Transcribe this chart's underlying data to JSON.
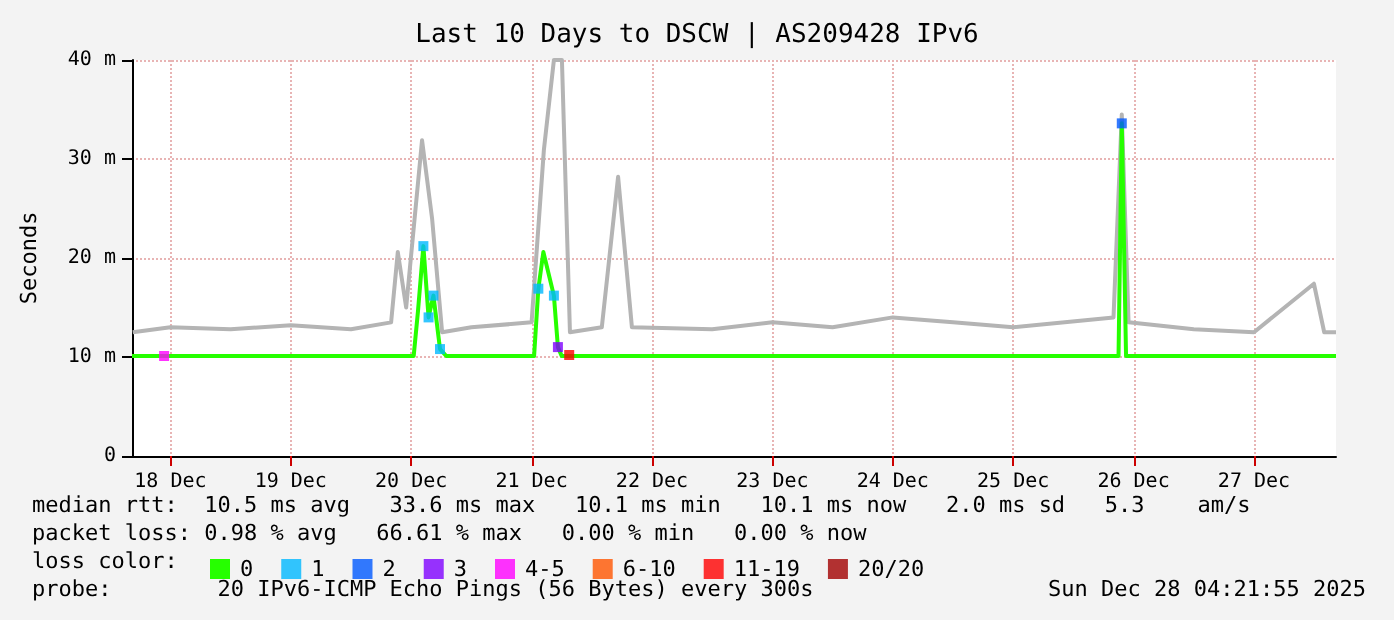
{
  "chart_data": {
    "type": "line",
    "title": "Last 10 Days to DSCW | AS209428 IPv6",
    "ylabel": "Seconds",
    "xlim": [
      "2025-12-18T04:21",
      "2025-12-28T04:21"
    ],
    "xticks": [
      {
        "value": "2025-12-18T12:00",
        "label": "18 Dec"
      },
      {
        "value": "2025-12-19T12:00",
        "label": "19 Dec"
      },
      {
        "value": "2025-12-20T12:00",
        "label": "20 Dec"
      },
      {
        "value": "2025-12-21T12:00",
        "label": "21 Dec"
      },
      {
        "value": "2025-12-22T12:00",
        "label": "22 Dec"
      },
      {
        "value": "2025-12-23T12:00",
        "label": "23 Dec"
      },
      {
        "value": "2025-12-24T12:00",
        "label": "24 Dec"
      },
      {
        "value": "2025-12-25T12:00",
        "label": "25 Dec"
      },
      {
        "value": "2025-12-26T12:00",
        "label": "26 Dec"
      },
      {
        "value": "2025-12-27T12:00",
        "label": "27 Dec"
      }
    ],
    "ylim": [
      0,
      40
    ],
    "yticks": [
      0,
      {
        "value": 10,
        "label": "10 m"
      },
      {
        "value": 20,
        "label": "20 m"
      },
      {
        "value": 30,
        "label": "30 m"
      },
      {
        "value": 40,
        "label": "40 m"
      }
    ],
    "grid": true,
    "legend": "bottom",
    "legend_title": "loss color:",
    "series": [
      {
        "color": "#b4b4b4",
        "marker": "none",
        "x": [
          "2025-12-18T04:30",
          "2025-12-18T12:00",
          "2025-12-19T00:00",
          "2025-12-19T12:00",
          "2025-12-20T00:00",
          "2025-12-20T08:00",
          "2025-12-20T09:20",
          "2025-12-20T11:00",
          "2025-12-20T14:10",
          "2025-12-20T16:10",
          "2025-12-20T18:10",
          "2025-12-21T00:00",
          "2025-12-21T12:00",
          "2025-12-21T14:27",
          "2025-12-21T16:27",
          "2025-12-21T18:03",
          "2025-12-21T19:39",
          "2025-12-22T02:00",
          "2025-12-22T05:15",
          "2025-12-22T08:00",
          "2025-12-23T00:00",
          "2025-12-23T12:00",
          "2025-12-24T00:00",
          "2025-12-24T12:00",
          "2025-12-25T00:00",
          "2025-12-25T12:00",
          "2025-12-26T08:00",
          "2025-12-26T09:39",
          "2025-12-26T11:00",
          "2025-12-27T00:00",
          "2025-12-27T12:00",
          "2025-12-27T23:57",
          "2025-12-28T02:00",
          "2025-12-28T04:21"
        ],
        "values": [
          12.5,
          13,
          12.8,
          13.2,
          12.8,
          13.5,
          20.6,
          15,
          31.9,
          24,
          12.5,
          13,
          13.5,
          30.9,
          40,
          40,
          12.5,
          13,
          28.2,
          13,
          12.8,
          13.5,
          13,
          14,
          13.5,
          13,
          14,
          34.5,
          13.5,
          12.8,
          12.5,
          17.4,
          12.5,
          12.5
        ]
      },
      {
        "name": "0",
        "color": "#26ff00",
        "marker": "none",
        "x": [
          "2025-12-18T04:21",
          "2025-12-20T12:30",
          "2025-12-20T13:21",
          "2025-12-20T14:26",
          "2025-12-20T15:28",
          "2025-12-20T16:26",
          "2025-12-20T17:45",
          "2025-12-20T19:00",
          "2025-12-21T12:30",
          "2025-12-21T13:21",
          "2025-12-21T14:21",
          "2025-12-21T16:27",
          "2025-12-21T17:15",
          "2025-12-21T18:00",
          "2025-12-26T09:00",
          "2025-12-26T09:39",
          "2025-12-26T10:30",
          "2025-12-28T04:21"
        ],
        "values": [
          10.1,
          10.1,
          14.6,
          21.2,
          14,
          16.2,
          10.8,
          10.1,
          10.1,
          16.9,
          20.6,
          16.2,
          11,
          10.1,
          10.1,
          33.6,
          10.1,
          10.1
        ]
      },
      {
        "name": "1",
        "type": "scatter",
        "color": "#00b8ff",
        "marker": "square",
        "x": [
          "2025-12-20T14:26",
          "2025-12-20T15:28",
          "2025-12-20T16:26",
          "2025-12-20T17:45",
          "2025-12-21T13:21",
          "2025-12-21T16:27"
        ],
        "values": [
          21.2,
          14,
          16.2,
          10.8,
          16.9,
          16.2
        ]
      },
      {
        "name": "2",
        "type": "scatter",
        "color": "#0059ff",
        "marker": "square",
        "x": [
          "2025-12-26T09:39"
        ],
        "values": [
          33.6
        ]
      },
      {
        "name": "3",
        "type": "scatter",
        "color": "#7e00ff",
        "marker": "square",
        "x": [
          "2025-12-21T17:15"
        ],
        "values": [
          11
        ]
      },
      {
        "name": "4-5",
        "type": "scatter",
        "color": "#ff00ff",
        "marker": "square",
        "x": [
          "2025-12-18T10:45"
        ],
        "values": [
          10.1
        ]
      },
      {
        "name": "6-10",
        "type": "scatter",
        "color": "#ff5500",
        "marker": "square"
      },
      {
        "name": "11-19",
        "type": "scatter",
        "color": "#ff0000",
        "marker": "square",
        "x": [
          "2025-12-21T19:30"
        ],
        "values": [
          10.2
        ]
      },
      {
        "name": "20/20",
        "type": "scatter",
        "color": "#a10000",
        "marker": "square"
      }
    ],
    "annotations": [
      "median rtt:  10.5 ms avg   33.6 ms max   10.1 ms min   10.1 ms now   2.0 ms sd   5.3    am/s",
      "packet loss: 0.98 % avg   66.61 % max   0.00 % min   0.00 % now",
      "probe:        20 IPv6-ICMP Echo Pings (56 Bytes) every 300s",
      "Sun Dec 28 04:21:55 2025"
    ]
  }
}
